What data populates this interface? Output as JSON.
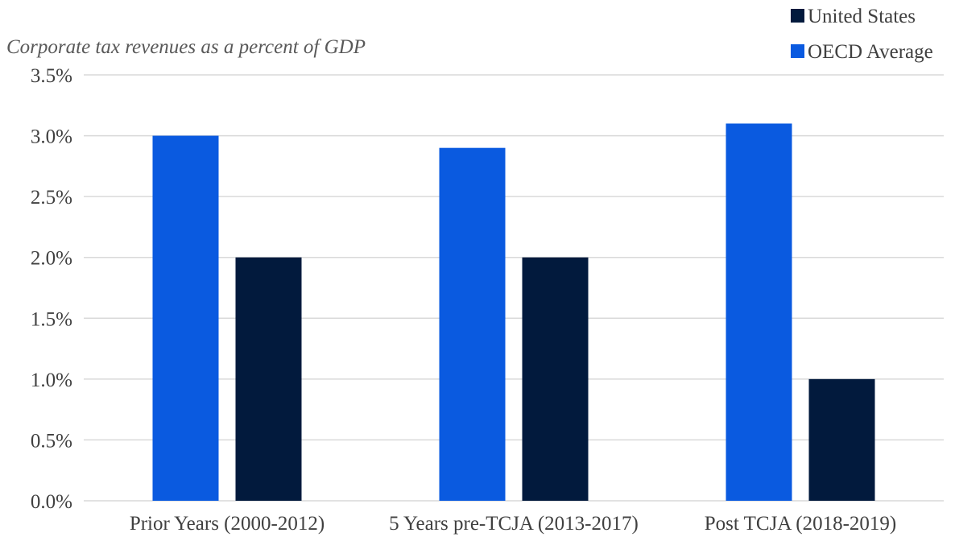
{
  "chart_data": {
    "type": "bar",
    "subtitle": "Corporate tax revenues as a percent of GDP",
    "categories": [
      "Prior Years (2000-2012)",
      "5 Years pre-TCJA (2013-2017)",
      "Post TCJA (2018-2019)"
    ],
    "series": [
      {
        "name": "OECD Average",
        "color": "#0a5ae0",
        "values": [
          3.0,
          2.9,
          3.1
        ]
      },
      {
        "name": "United States",
        "color": "#021a3d",
        "values": [
          2.0,
          2.0,
          1.0
        ]
      }
    ],
    "legend_order": [
      "United States",
      "OECD Average"
    ],
    "yticks": [
      "0.0%",
      "0.5%",
      "1.0%",
      "1.5%",
      "2.0%",
      "2.5%",
      "3.0%",
      "3.5%"
    ],
    "ylim": [
      0,
      3.5
    ],
    "grid": true,
    "legend_position": "top-right"
  }
}
